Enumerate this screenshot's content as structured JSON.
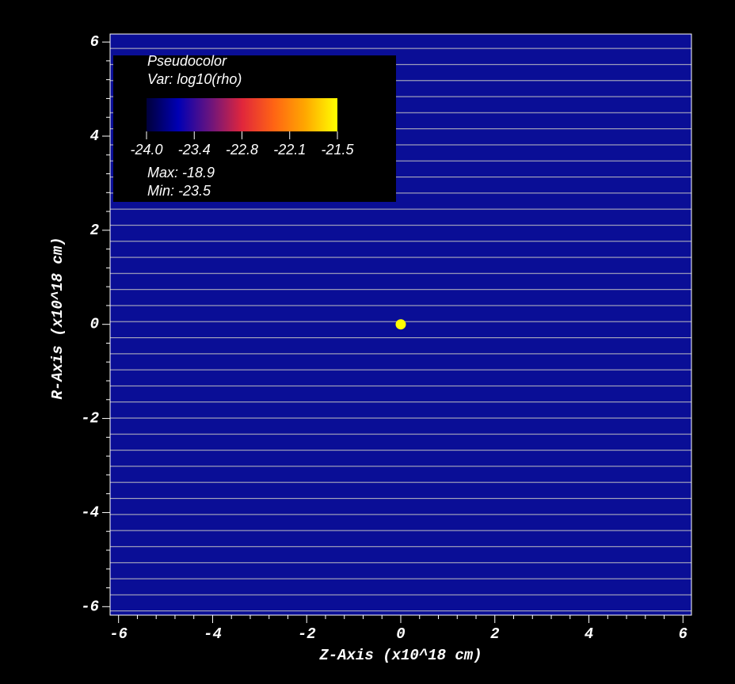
{
  "chart_data": {
    "type": "pseudocolor",
    "xlabel": "Z-Axis (x10^18 cm)",
    "ylabel": "R-Axis (x10^18 cm)",
    "xlim": [
      -6.18,
      6.18
    ],
    "ylim": [
      -6.18,
      6.17
    ],
    "xticks": [
      -6,
      -4,
      -2,
      0,
      2,
      4,
      6
    ],
    "yticks": [
      -6,
      -4,
      -2,
      0,
      2,
      4,
      6
    ],
    "background": "#0a0e96",
    "points": {
      "x": [
        0
      ],
      "y": [
        0
      ],
      "color": "#ffff00"
    },
    "legend": {
      "title": "Pseudocolor",
      "variable": "Var: log10(rho)",
      "max": "Max: -18.9",
      "min": "Min: -23.5",
      "range": [
        -24.0,
        -21.5
      ],
      "ticks": [
        {
          "value": -24.0,
          "label": "-24.0"
        },
        {
          "value": -23.375,
          "label": "-23.4"
        },
        {
          "value": -22.75,
          "label": "-22.8"
        },
        {
          "value": -22.125,
          "label": "-22.1"
        },
        {
          "value": -21.5,
          "label": "-21.5"
        }
      ],
      "colormap": [
        "#00003a",
        "#0000b4",
        "#6a147e",
        "#e0263c",
        "#ff6414",
        "#ffa800",
        "#ffff00"
      ]
    }
  }
}
